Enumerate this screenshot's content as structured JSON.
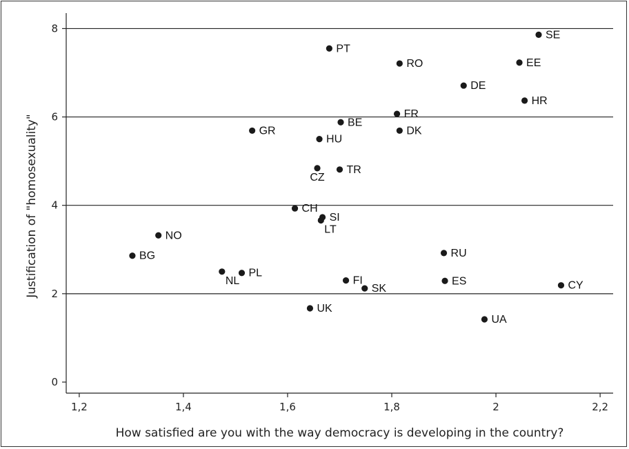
{
  "chart_data": {
    "type": "scatter",
    "xlabel": "How satisfied are you with the way democracy is developing in the country?",
    "ylabel": "Justification of \"homosexuality\"",
    "xlim": [
      1.175,
      2.225
    ],
    "ylim": [
      -0.25,
      8.35
    ],
    "x_ticks": [
      1.2,
      1.4,
      1.6,
      1.8,
      2.0,
      2.2
    ],
    "x_tick_labels": [
      "1,2",
      "1,4",
      "1,6",
      "1,8",
      "2",
      "2,2"
    ],
    "y_ticks": [
      0,
      2,
      4,
      6,
      8
    ],
    "y_tick_labels": [
      "0",
      "2",
      "4",
      "6",
      "8"
    ],
    "grid": "horizontal",
    "marker_color": "#1a1a1a",
    "points": [
      {
        "label": "SE",
        "x": 2.082,
        "y": 7.86
      },
      {
        "label": "PT",
        "x": 1.68,
        "y": 7.55
      },
      {
        "label": "RO",
        "x": 1.815,
        "y": 7.21
      },
      {
        "label": "EE",
        "x": 2.045,
        "y": 7.23
      },
      {
        "label": "DE",
        "x": 1.938,
        "y": 6.71
      },
      {
        "label": "HR",
        "x": 2.055,
        "y": 6.37
      },
      {
        "label": "FR",
        "x": 1.81,
        "y": 6.07
      },
      {
        "label": "BE",
        "x": 1.702,
        "y": 5.88
      },
      {
        "label": "DK",
        "x": 1.815,
        "y": 5.69
      },
      {
        "label": "GR",
        "x": 1.532,
        "y": 5.69
      },
      {
        "label": "HU",
        "x": 1.661,
        "y": 5.5
      },
      {
        "label": "CZ",
        "x": 1.657,
        "y": 4.84
      },
      {
        "label": "TR",
        "x": 1.7,
        "y": 4.81
      },
      {
        "label": "CH",
        "x": 1.614,
        "y": 3.93
      },
      {
        "label": "SI",
        "x": 1.667,
        "y": 3.73
      },
      {
        "label": "LT",
        "x": 1.664,
        "y": 3.66
      },
      {
        "label": "NO",
        "x": 1.352,
        "y": 3.32
      },
      {
        "label": "BG",
        "x": 1.302,
        "y": 2.86
      },
      {
        "label": "RU",
        "x": 1.9,
        "y": 2.92
      },
      {
        "label": "NL",
        "x": 1.474,
        "y": 2.5
      },
      {
        "label": "PL",
        "x": 1.512,
        "y": 2.47
      },
      {
        "label": "FI",
        "x": 1.712,
        "y": 2.3
      },
      {
        "label": "ES",
        "x": 1.902,
        "y": 2.29
      },
      {
        "label": "SK",
        "x": 1.748,
        "y": 2.12
      },
      {
        "label": "CY",
        "x": 2.125,
        "y": 2.19
      },
      {
        "label": "UK",
        "x": 1.643,
        "y": 1.67
      },
      {
        "label": "UA",
        "x": 1.978,
        "y": 1.42
      }
    ]
  }
}
